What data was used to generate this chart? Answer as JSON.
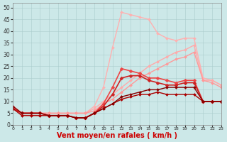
{
  "bg_color": "#cce8e8",
  "grid_color": "#aacccc",
  "xlabel": "Vent moyen/en rafales ( km/h )",
  "xlabel_color": "#cc0000",
  "xlabel_fontsize": 7,
  "xticks": [
    0,
    1,
    2,
    3,
    4,
    5,
    6,
    7,
    8,
    9,
    10,
    11,
    12,
    13,
    14,
    15,
    16,
    17,
    18,
    19,
    20,
    21,
    22,
    23
  ],
  "yticks": [
    0,
    5,
    10,
    15,
    20,
    25,
    30,
    35,
    40,
    45,
    50
  ],
  "ylim": [
    0,
    52
  ],
  "xlim": [
    0,
    23
  ],
  "series": [
    {
      "x": [
        0,
        1,
        2,
        3,
        4,
        5,
        6,
        7,
        8,
        9,
        10,
        11,
        12,
        13,
        14,
        15,
        16,
        17,
        18,
        19,
        20,
        21,
        22,
        23
      ],
      "y": [
        8,
        5,
        5,
        5,
        5,
        5,
        5,
        5,
        5,
        8,
        16,
        33,
        48,
        47,
        46,
        45,
        39,
        37,
        36,
        37,
        37,
        20,
        19,
        17
      ],
      "color": "#ffb0b0",
      "linewidth": 1.0,
      "marker": "D",
      "markersize": 2.0
    },
    {
      "x": [
        0,
        1,
        2,
        3,
        4,
        5,
        6,
        7,
        8,
        9,
        10,
        11,
        12,
        13,
        14,
        15,
        16,
        17,
        18,
        19,
        20,
        21,
        22,
        23
      ],
      "y": [
        8,
        5,
        5,
        5,
        5,
        5,
        5,
        5,
        5,
        7,
        10,
        13,
        16,
        19,
        22,
        25,
        27,
        29,
        31,
        32,
        34,
        19,
        19,
        17
      ],
      "color": "#ffaaaa",
      "linewidth": 1.0,
      "marker": "D",
      "markersize": 2.0
    },
    {
      "x": [
        0,
        1,
        2,
        3,
        4,
        5,
        6,
        7,
        8,
        9,
        10,
        11,
        12,
        13,
        14,
        15,
        16,
        17,
        18,
        19,
        20,
        21,
        22,
        23
      ],
      "y": [
        8,
        5,
        5,
        5,
        5,
        5,
        5,
        5,
        5,
        6,
        9,
        11,
        14,
        17,
        20,
        22,
        24,
        26,
        28,
        29,
        31,
        19,
        18,
        16
      ],
      "color": "#ff9999",
      "linewidth": 1.0,
      "marker": "D",
      "markersize": 2.0
    },
    {
      "x": [
        0,
        1,
        2,
        3,
        4,
        5,
        6,
        7,
        8,
        9,
        10,
        11,
        12,
        13,
        14,
        15,
        16,
        17,
        18,
        19,
        20,
        21,
        22,
        23
      ],
      "y": [
        7,
        5,
        5,
        5,
        4,
        4,
        4,
        3,
        3,
        5,
        9,
        16,
        24,
        23,
        22,
        20,
        20,
        19,
        18,
        19,
        19,
        10,
        10,
        10
      ],
      "color": "#ee4444",
      "linewidth": 1.2,
      "marker": "D",
      "markersize": 2.5
    },
    {
      "x": [
        0,
        1,
        2,
        3,
        4,
        5,
        6,
        7,
        8,
        9,
        10,
        11,
        12,
        13,
        14,
        15,
        16,
        17,
        18,
        19,
        20,
        21,
        22,
        23
      ],
      "y": [
        7,
        5,
        5,
        5,
        4,
        4,
        4,
        3,
        3,
        5,
        8,
        13,
        20,
        21,
        21,
        19,
        18,
        17,
        17,
        18,
        18,
        10,
        10,
        10
      ],
      "color": "#cc2222",
      "linewidth": 1.2,
      "marker": "D",
      "markersize": 2.5
    },
    {
      "x": [
        0,
        1,
        2,
        3,
        4,
        5,
        6,
        7,
        8,
        9,
        10,
        11,
        12,
        13,
        14,
        15,
        16,
        17,
        18,
        19,
        20,
        21,
        22,
        23
      ],
      "y": [
        7,
        4,
        4,
        4,
        4,
        4,
        4,
        3,
        3,
        5,
        7,
        9,
        11,
        12,
        13,
        13,
        14,
        13,
        13,
        13,
        13,
        10,
        10,
        10
      ],
      "color": "#aa0000",
      "linewidth": 1.0,
      "marker": "D",
      "markersize": 2.0
    },
    {
      "x": [
        0,
        1,
        2,
        3,
        4,
        5,
        6,
        7,
        8,
        9,
        10,
        11,
        12,
        13,
        14,
        15,
        16,
        17,
        18,
        19,
        20,
        21,
        22,
        23
      ],
      "y": [
        8,
        5,
        5,
        5,
        4,
        4,
        4,
        3,
        3,
        5,
        7,
        9,
        12,
        13,
        14,
        15,
        15,
        16,
        16,
        16,
        16,
        10,
        10,
        10
      ],
      "color": "#880000",
      "linewidth": 1.0,
      "marker": "D",
      "markersize": 2.0
    }
  ]
}
